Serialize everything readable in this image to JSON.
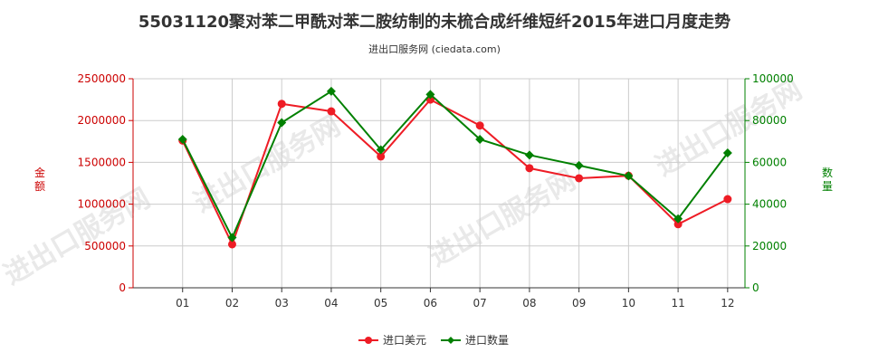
{
  "chart_data": {
    "type": "line",
    "title": "55031120聚对苯二甲酰对苯二胺纺制的未梳合成纤维短纤2015年进口月度走势",
    "subtitle": "进出口服务网 (ciedata.com)",
    "categories": [
      "01",
      "02",
      "03",
      "04",
      "05",
      "06",
      "07",
      "08",
      "09",
      "10",
      "11",
      "12"
    ],
    "series": [
      {
        "name": "进口美元",
        "axis": "left",
        "color": "#ee1c25",
        "values": [
          1760000,
          520000,
          2200000,
          2110000,
          1570000,
          2250000,
          1940000,
          1430000,
          1310000,
          1340000,
          760000,
          1060000
        ]
      },
      {
        "name": "进口数量",
        "axis": "right",
        "color": "#008000",
        "values": [
          71000,
          24000,
          79000,
          94000,
          66000,
          92500,
          71000,
          63500,
          58500,
          53500,
          33000,
          64500
        ]
      }
    ],
    "y_left": {
      "label": "金额",
      "min": 0,
      "max": 2500000,
      "ticks": [
        "0",
        "500000",
        "1000000",
        "1500000",
        "2000000",
        "2500000"
      ]
    },
    "y_right": {
      "label": "数量",
      "min": 0,
      "max": 100000,
      "ticks": [
        "0",
        "20000",
        "40000",
        "60000",
        "80000",
        "100000"
      ]
    },
    "grid": true,
    "legend_position": "bottom-center",
    "watermark": "进出口服务网"
  }
}
